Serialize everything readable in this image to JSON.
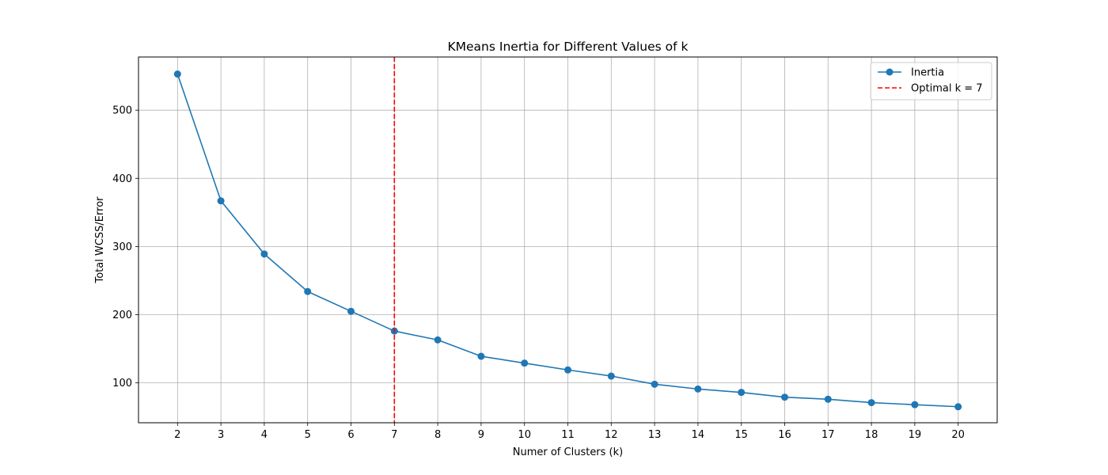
{
  "chart_data": {
    "type": "line",
    "title": "KMeans Inertia for Different Values of k",
    "xlabel": "Numer of Clusters (k)",
    "ylabel": "Total WCSS/Error",
    "x": [
      2,
      3,
      4,
      5,
      6,
      7,
      8,
      9,
      10,
      11,
      12,
      13,
      14,
      15,
      16,
      17,
      18,
      19,
      20
    ],
    "x_ticks": [
      "2",
      "3",
      "4",
      "5",
      "6",
      "7",
      "8",
      "9",
      "10",
      "11",
      "12",
      "13",
      "14",
      "15",
      "16",
      "17",
      "18",
      "19",
      "20"
    ],
    "y_ticks": [
      "100",
      "200",
      "300",
      "400",
      "500"
    ],
    "xlim": [
      1.1,
      20.9
    ],
    "ylim": [
      41.5,
      578
    ],
    "series": [
      {
        "name": "Inertia",
        "color": "#1f77b4",
        "marker": "circle",
        "values": [
          553,
          367,
          289,
          234,
          205,
          176,
          163,
          139,
          129,
          119,
          110,
          98,
          91,
          86,
          79,
          76,
          71,
          68,
          65
        ]
      }
    ],
    "vline": {
      "x": 7,
      "label": "Optimal k = 7",
      "color": "#ff0000",
      "style": "dashed"
    },
    "grid": true,
    "legend_position": "top-right"
  }
}
